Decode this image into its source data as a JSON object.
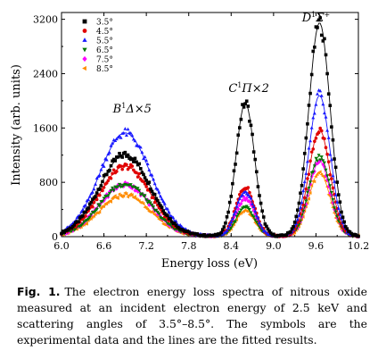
{
  "chart_data": {
    "type": "scatter",
    "title": "",
    "xlabel": "Energy loss (eV)",
    "ylabel": "Intensity (arb. units)",
    "xlim": [
      6.0,
      10.2
    ],
    "ylim": [
      0,
      3300
    ],
    "x_ticks": [
      "6.0",
      "6.6",
      "7.2",
      "7.8",
      "8.4",
      "9.0",
      "9.6",
      "10.2"
    ],
    "y_ticks": [
      "0",
      "800",
      "1600",
      "2400",
      "3200"
    ],
    "grid": false,
    "legend_position": "top-left",
    "annotations": [
      {
        "text": "B",
        "sup": "1",
        "rest": "Δ×5",
        "x": 7.0,
        "y": 1830
      },
      {
        "text": "C",
        "sup": "1",
        "rest": "Π×2",
        "x": 8.65,
        "y": 2130
      },
      {
        "text": "D",
        "sup": "1",
        "rest": "Σ",
        "sup2": "+",
        "x": 9.6,
        "y": 3170
      }
    ],
    "peak_centers": [
      6.9,
      8.6,
      9.65
    ],
    "peak_widths": [
      0.36,
      0.13,
      0.15
    ],
    "series": [
      {
        "name": "3.5°",
        "marker": "square",
        "color": "#000000",
        "peaks": [
          1200,
          1960,
          3140
        ]
      },
      {
        "name": "4.5°",
        "marker": "circle",
        "color": "#e00000",
        "peaks": [
          1030,
          720,
          1560
        ]
      },
      {
        "name": "5.5°",
        "marker": "triangle-up",
        "color": "#1a1aff",
        "peaks": [
          1520,
          660,
          2070
        ]
      },
      {
        "name": "6.5°",
        "marker": "triangle-down",
        "color": "#007700",
        "peaks": [
          770,
          420,
          1180
        ]
      },
      {
        "name": "7.5°",
        "marker": "diamond",
        "color": "#ff00ff",
        "peaks": [
          760,
          560,
          1100
        ]
      },
      {
        "name": "8.5°",
        "marker": "triangle-left",
        "color": "#ff8c00",
        "peaks": [
          610,
          380,
          940
        ]
      }
    ]
  },
  "caption": {
    "label": "Fig. 1.",
    "text": "The electron energy loss spectra of nitrous oxide measured at an incident electron energy of 2.5 keV and scattering angles of 3.5°–8.5°. The symbols are the experimental data and the lines are the fitted results."
  }
}
